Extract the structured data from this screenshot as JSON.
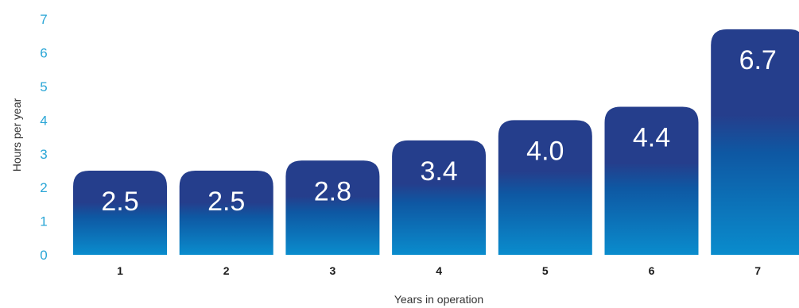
{
  "chart_data": {
    "type": "bar",
    "title": "",
    "xlabel": "Years in operation",
    "ylabel": "Hours per year",
    "categories": [
      "1",
      "2",
      "3",
      "4",
      "5",
      "6",
      "7"
    ],
    "values": [
      2.5,
      2.5,
      2.8,
      3.4,
      4.0,
      4.4,
      6.7
    ],
    "value_labels": [
      "2.5",
      "2.5",
      "2.8",
      "3.4",
      "4.0",
      "4.4",
      "6.7"
    ],
    "ylim": [
      0,
      7
    ],
    "yticks": [
      "0",
      "1",
      "2",
      "3",
      "4",
      "5",
      "6",
      "7"
    ],
    "grid": false,
    "colors": {
      "bar_top": "#253e8c",
      "bar_mid": "#0e58a3",
      "bar_bottom": "#0a8ccd",
      "ytick": "#2aa6d6",
      "xtick": "#1b1b1b"
    }
  }
}
